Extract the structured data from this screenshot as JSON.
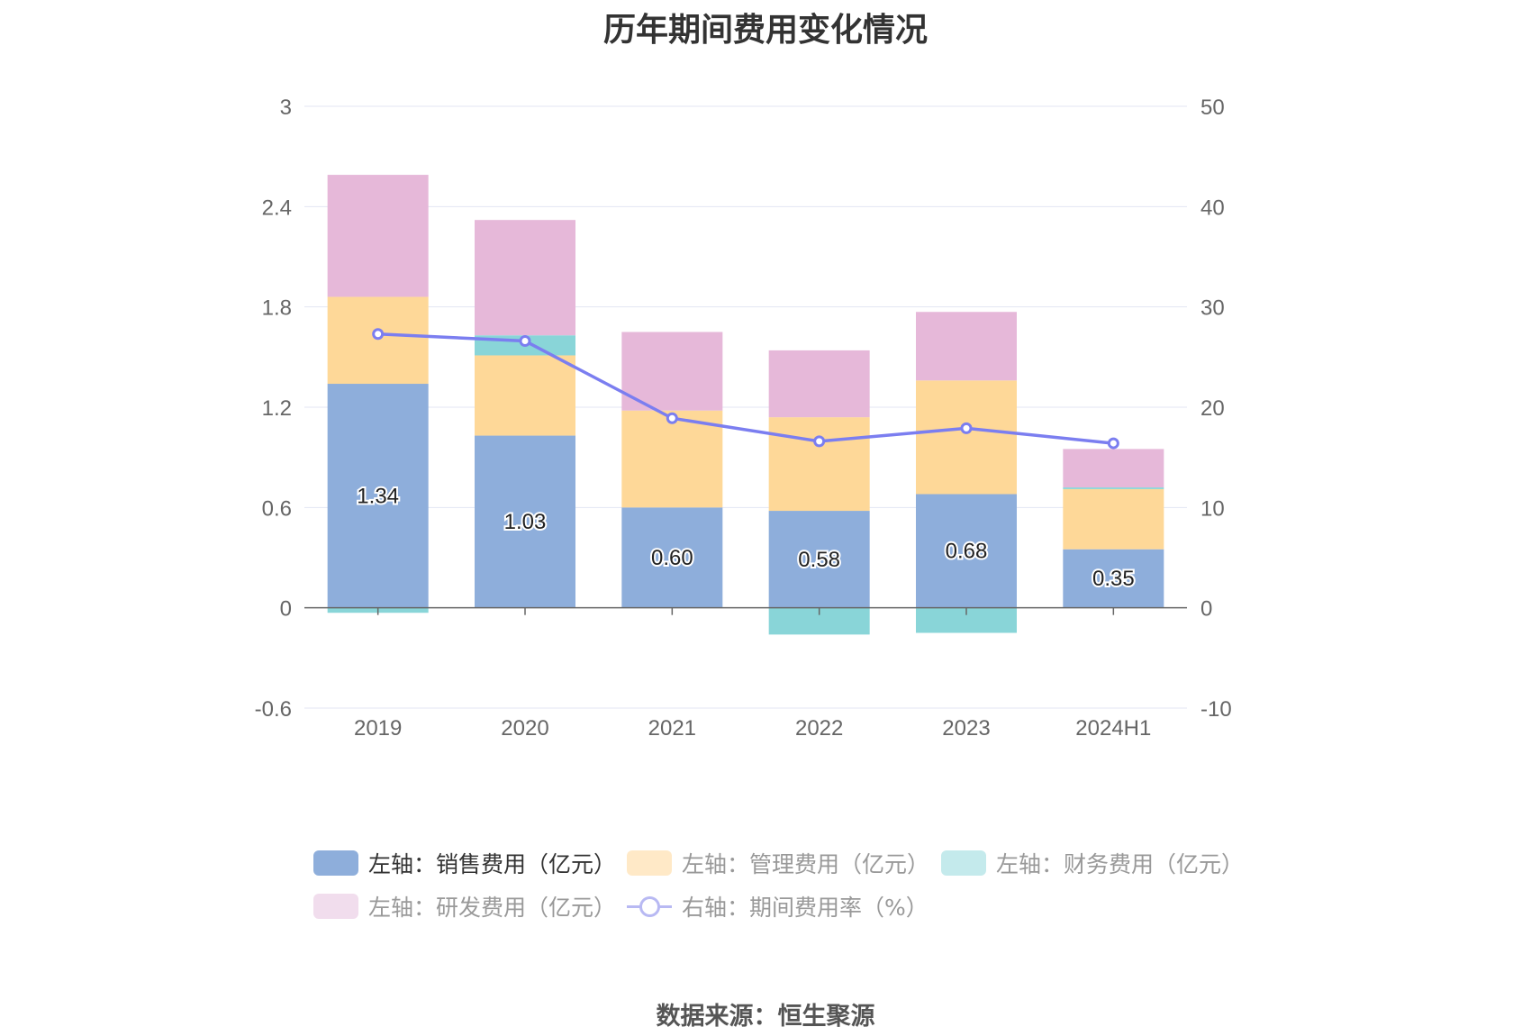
{
  "title": "历年期间费用变化情况",
  "source": "数据来源：恒生聚源",
  "chart_data": {
    "type": "bar",
    "stacked": true,
    "categories": [
      "2019",
      "2020",
      "2021",
      "2022",
      "2023",
      "2024H1"
    ],
    "left_axis": {
      "ticks": [
        "3",
        "2.4",
        "1.8",
        "1.2",
        "0.6",
        "0",
        "-0.6"
      ],
      "min": -0.6,
      "max": 3
    },
    "right_axis": {
      "ticks": [
        "50",
        "40",
        "30",
        "20",
        "10",
        "0",
        "-10"
      ],
      "min": -10,
      "max": 50
    },
    "series": [
      {
        "name": "左轴：销售费用（亿元）",
        "color": "#8eaedb",
        "values": [
          1.34,
          1.03,
          0.6,
          0.58,
          0.68,
          0.35
        ],
        "labels": [
          "1.34",
          "1.03",
          "0.60",
          "0.58",
          "0.68",
          "0.35"
        ]
      },
      {
        "name": "左轴：管理费用（亿元）",
        "color": "#fed898",
        "values": [
          0.52,
          0.48,
          0.58,
          0.56,
          0.68,
          0.36
        ]
      },
      {
        "name": "左轴：财务费用（亿元）",
        "color": "#89d5d8",
        "values": [
          -0.03,
          0.12,
          0.0,
          -0.16,
          -0.15,
          0.01
        ]
      },
      {
        "name": "左轴：研发费用（亿元）",
        "color": "#e6b8d9",
        "values": [
          0.73,
          0.69,
          0.47,
          0.4,
          0.41,
          0.23
        ]
      }
    ],
    "line": {
      "name": "右轴：期间费用率（%）",
      "color": "#7b7ef0",
      "values": [
        27.3,
        26.6,
        18.9,
        16.6,
        17.9,
        16.4
      ]
    },
    "legend": [
      {
        "label": "左轴：销售费用（亿元）",
        "color": "#8eaedb",
        "active": true
      },
      {
        "label": "左轴：管理费用（亿元）",
        "color": "#ffe9c7",
        "active": false
      },
      {
        "label": "左轴：财务费用（亿元）",
        "color": "#c4eaec",
        "active": false
      },
      {
        "label": "左轴：研发费用（亿元）",
        "color": "#f1dded",
        "active": false
      },
      {
        "label": "右轴：期间费用率（%）",
        "color": "#b8b9f3",
        "active": false,
        "kind": "line"
      }
    ]
  }
}
